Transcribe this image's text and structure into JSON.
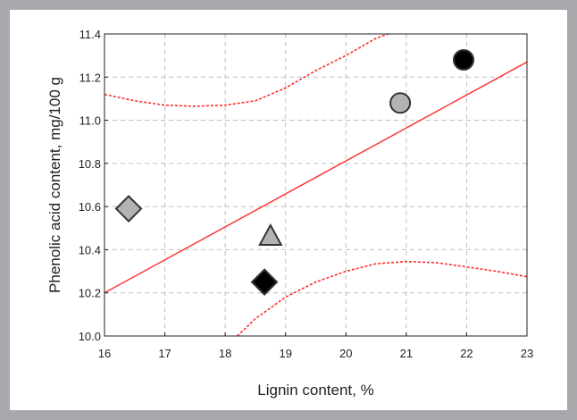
{
  "chart_data": {
    "type": "scatter",
    "title": "",
    "xlabel": "Lignin content, %",
    "ylabel": "Phenolic acid content, mg/100 g",
    "xlim": [
      16,
      23
    ],
    "ylim": [
      10.0,
      11.4
    ],
    "xticks": [
      "16",
      "17",
      "18",
      "19",
      "20",
      "21",
      "22",
      "23"
    ],
    "yticks": [
      "10.0",
      "10.2",
      "10.4",
      "10.6",
      "10.8",
      "11.0",
      "11.2",
      "11.4"
    ],
    "grid": true,
    "points": [
      {
        "x": 16.4,
        "y": 10.59,
        "marker": "diamond",
        "fill": "#b3b3b3"
      },
      {
        "x": 18.75,
        "y": 10.46,
        "marker": "triangle",
        "fill": "#b3b3b3"
      },
      {
        "x": 18.65,
        "y": 10.25,
        "marker": "diamond",
        "fill": "#000000"
      },
      {
        "x": 20.9,
        "y": 11.08,
        "marker": "circle",
        "fill": "#b3b3b3"
      },
      {
        "x": 21.95,
        "y": 11.28,
        "marker": "circle",
        "fill": "#000000"
      }
    ],
    "regression_line": {
      "x": [
        16,
        23
      ],
      "y": [
        10.2,
        11.27
      ],
      "color": "#ff2a2a"
    },
    "confidence_band_upper": {
      "x": [
        16.0,
        16.5,
        17.0,
        17.5,
        18.0,
        18.5,
        19.0,
        19.5,
        20.0,
        20.5,
        20.7
      ],
      "y": [
        11.12,
        11.09,
        11.07,
        11.065,
        11.07,
        11.09,
        11.15,
        11.23,
        11.3,
        11.38,
        11.4
      ],
      "color": "#ff2a2a"
    },
    "confidence_band_lower": {
      "x": [
        18.2,
        18.5,
        19.0,
        19.5,
        20.0,
        20.5,
        21.0,
        21.5,
        22.0,
        22.5,
        23.0
      ],
      "y": [
        10.0,
        10.08,
        10.18,
        10.25,
        10.3,
        10.335,
        10.345,
        10.34,
        10.32,
        10.3,
        10.275
      ],
      "color": "#ff2a2a"
    }
  }
}
